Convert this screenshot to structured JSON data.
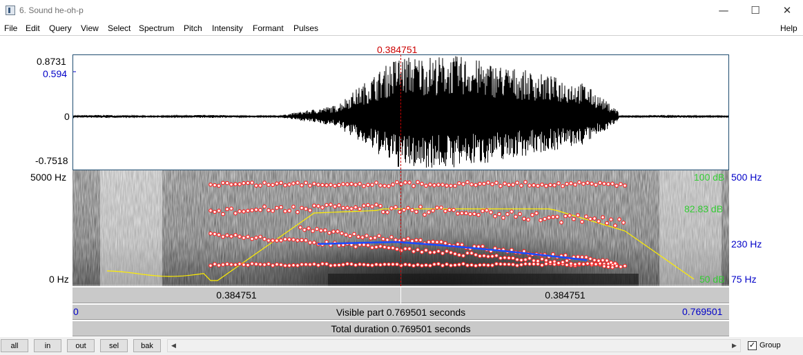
{
  "window": {
    "title": "6. Sound he-oh-p"
  },
  "menu": {
    "items": [
      "File",
      "Edit",
      "Query",
      "View",
      "Select",
      "Spectrum",
      "Pitch",
      "Intensity",
      "Formant",
      "Pulses"
    ],
    "help": "Help"
  },
  "cursor": {
    "time_label": "0.384751"
  },
  "waveform": {
    "max_label": "0.8731",
    "marker_label": "0.594",
    "zero_label": "0",
    "min_label": "-0.7518"
  },
  "spectrogram": {
    "top_freq_label": "5000 Hz",
    "bottom_freq_label": "0 Hz",
    "intensity_top_label": "100 dB",
    "intensity_mid_label": "82.83 dB",
    "intensity_bottom_label": "50 dB",
    "pitch_top_label": "500 Hz",
    "pitch_mid_label": "230 Hz",
    "pitch_bottom_label": "75 Hz"
  },
  "time_bars": {
    "left_segment": "0.384751",
    "right_segment": "0.384751",
    "visible_start": "0",
    "visible_label": "Visible part 0.769501 seconds",
    "visible_end": "0.769501",
    "total_label": "Total duration 0.769501 seconds"
  },
  "toolbar": {
    "all": "all",
    "in": "in",
    "out": "out",
    "sel": "sel",
    "bak": "bak",
    "group_label": "Group",
    "group_checked": "✓"
  },
  "colors": {
    "cursor": "#cc0000",
    "formant": "#ff2020",
    "pitch": "#1a4cff",
    "intensity": "#ffee00",
    "axis_blue": "#0000c8",
    "intensity_green": "#33cc33"
  }
}
